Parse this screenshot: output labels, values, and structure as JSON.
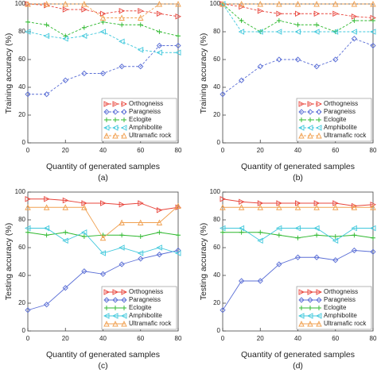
{
  "chart_data": [
    {
      "type": "line",
      "caption": "(a)",
      "xlabel": "Quantity of generated samples",
      "ylabel": "Training accuracy (%)",
      "dashed": true,
      "legend": "lower right",
      "x": [
        0,
        10,
        20,
        30,
        40,
        50,
        60,
        70,
        80
      ],
      "xlim": [
        0,
        80
      ],
      "xticks": [
        0,
        20,
        40,
        60,
        80
      ],
      "ylim": [
        0,
        100
      ],
      "yticks": [
        0,
        20,
        40,
        60,
        80,
        100
      ],
      "series": [
        {
          "name": "Orthogneiss",
          "color": "#e8453c",
          "marker": "right-triangle",
          "values": [
            100,
            99,
            96,
            96,
            93,
            95,
            95,
            93,
            91
          ]
        },
        {
          "name": "Paragneiss",
          "color": "#5b6fd6",
          "marker": "diamond",
          "values": [
            35,
            35,
            45,
            50,
            50,
            55,
            55,
            70,
            70
          ]
        },
        {
          "name": "Eclogite",
          "color": "#2db82d",
          "marker": "plus",
          "values": [
            87,
            85,
            77,
            83,
            87,
            85,
            85,
            80,
            77
          ]
        },
        {
          "name": "Amphibolite",
          "color": "#40c8dc",
          "marker": "left-triangle",
          "values": [
            80,
            77,
            75,
            77,
            80,
            73,
            67,
            65,
            65
          ]
        },
        {
          "name": "Ultramafic rock",
          "color": "#f0a050",
          "marker": "up-triangle",
          "values": [
            100,
            100,
            100,
            100,
            90,
            90,
            90,
            100,
            100
          ]
        }
      ]
    },
    {
      "type": "line",
      "caption": "(b)",
      "xlabel": "Quantity of generated samples",
      "ylabel": "Training accuracy (%)",
      "dashed": true,
      "legend": "lower right",
      "x": [
        0,
        10,
        20,
        30,
        40,
        50,
        60,
        70,
        80
      ],
      "xlim": [
        0,
        80
      ],
      "xticks": [
        0,
        20,
        40,
        60,
        80
      ],
      "ylim": [
        0,
        100
      ],
      "yticks": [
        0,
        20,
        40,
        60,
        80,
        100
      ],
      "series": [
        {
          "name": "Orthogneiss",
          "color": "#e8453c",
          "marker": "right-triangle",
          "values": [
            100,
            98,
            95,
            93,
            93,
            93,
            93,
            91,
            90
          ]
        },
        {
          "name": "Paragneiss",
          "color": "#5b6fd6",
          "marker": "diamond",
          "values": [
            35,
            45,
            55,
            60,
            60,
            55,
            60,
            75,
            70
          ]
        },
        {
          "name": "Eclogite",
          "color": "#2db82d",
          "marker": "plus",
          "values": [
            100,
            88,
            80,
            88,
            85,
            85,
            80,
            88,
            88
          ]
        },
        {
          "name": "Amphibolite",
          "color": "#40c8dc",
          "marker": "left-triangle",
          "values": [
            100,
            80,
            80,
            80,
            80,
            80,
            80,
            80,
            80
          ]
        },
        {
          "name": "Ultramafic rock",
          "color": "#f0a050",
          "marker": "up-triangle",
          "values": [
            100,
            100,
            100,
            100,
            100,
            100,
            100,
            100,
            100
          ]
        }
      ]
    },
    {
      "type": "line",
      "caption": "(c)",
      "xlabel": "Quantity of generated samples",
      "ylabel": "Testing accuracy (%)",
      "dashed": false,
      "legend": "lower right",
      "x": [
        0,
        10,
        20,
        30,
        40,
        50,
        60,
        70,
        80
      ],
      "xlim": [
        0,
        80
      ],
      "xticks": [
        0,
        20,
        40,
        60,
        80
      ],
      "ylim": [
        0,
        100
      ],
      "yticks": [
        0,
        20,
        40,
        60,
        80,
        100
      ],
      "series": [
        {
          "name": "Orthogneiss",
          "color": "#e8453c",
          "marker": "right-triangle",
          "values": [
            95,
            95,
            94,
            92,
            92,
            91,
            92,
            87,
            89
          ]
        },
        {
          "name": "Paragneiss",
          "color": "#5b6fd6",
          "marker": "diamond",
          "values": [
            15,
            19,
            31,
            43,
            41,
            48,
            52,
            55,
            58
          ]
        },
        {
          "name": "Eclogite",
          "color": "#2db82d",
          "marker": "plus",
          "values": [
            71,
            69,
            71,
            68,
            69,
            69,
            68,
            71,
            69
          ]
        },
        {
          "name": "Amphibolite",
          "color": "#40c8dc",
          "marker": "left-triangle",
          "values": [
            74,
            74,
            65,
            71,
            56,
            60,
            56,
            60,
            56
          ]
        },
        {
          "name": "Ultramafic rock",
          "color": "#f0a050",
          "marker": "up-triangle",
          "values": [
            89,
            89,
            89,
            89,
            67,
            78,
            78,
            78,
            90
          ]
        }
      ]
    },
    {
      "type": "line",
      "caption": "(d)",
      "xlabel": "Quantity of generated samples",
      "ylabel": "Testing accuracy (%)",
      "dashed": false,
      "legend": "lower right",
      "x": [
        0,
        10,
        20,
        30,
        40,
        50,
        60,
        70,
        80
      ],
      "xlim": [
        0,
        80
      ],
      "xticks": [
        0,
        20,
        40,
        60,
        80
      ],
      "ylim": [
        0,
        100
      ],
      "yticks": [
        0,
        20,
        40,
        60,
        80,
        100
      ],
      "series": [
        {
          "name": "Orthogneiss",
          "color": "#e8453c",
          "marker": "right-triangle",
          "values": [
            95,
            93,
            92,
            92,
            92,
            92,
            92,
            90,
            91
          ]
        },
        {
          "name": "Paragneiss",
          "color": "#5b6fd6",
          "marker": "diamond",
          "values": [
            15,
            36,
            36,
            48,
            53,
            53,
            51,
            58,
            57
          ]
        },
        {
          "name": "Eclogite",
          "color": "#2db82d",
          "marker": "plus",
          "values": [
            71,
            71,
            71,
            69,
            67,
            69,
            68,
            69,
            67
          ]
        },
        {
          "name": "Amphibolite",
          "color": "#40c8dc",
          "marker": "left-triangle",
          "values": [
            74,
            74,
            65,
            74,
            74,
            74,
            65,
            74,
            74
          ]
        },
        {
          "name": "Ultramafic rock",
          "color": "#f0a050",
          "marker": "up-triangle",
          "values": [
            89,
            89,
            89,
            89,
            89,
            89,
            89,
            89,
            89
          ]
        }
      ]
    }
  ]
}
